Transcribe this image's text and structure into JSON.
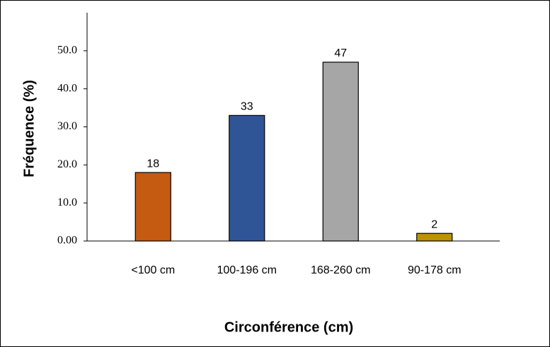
{
  "chart_data": {
    "type": "bar",
    "x_label": "Circonférence (cm)",
    "y_label": "Fréquence (%)",
    "categories": [
      "<100 cm",
      "100-196 cm",
      "168-260 cm",
      "90-178 cm"
    ],
    "values": [
      18,
      33,
      47,
      2
    ],
    "colors": [
      "#c55a11",
      "#2f5597",
      "#a6a6a6",
      "#bf9000"
    ],
    "ylim": [
      0,
      60
    ],
    "yticks": [
      {
        "value": 0,
        "label": "0.00"
      },
      {
        "value": 10,
        "label": "10.0"
      },
      {
        "value": 20,
        "label": "20.0"
      },
      {
        "value": 30,
        "label": "30.0"
      },
      {
        "value": 40,
        "label": "40.0"
      },
      {
        "value": 50,
        "label": "50.0"
      }
    ],
    "grid": false
  }
}
